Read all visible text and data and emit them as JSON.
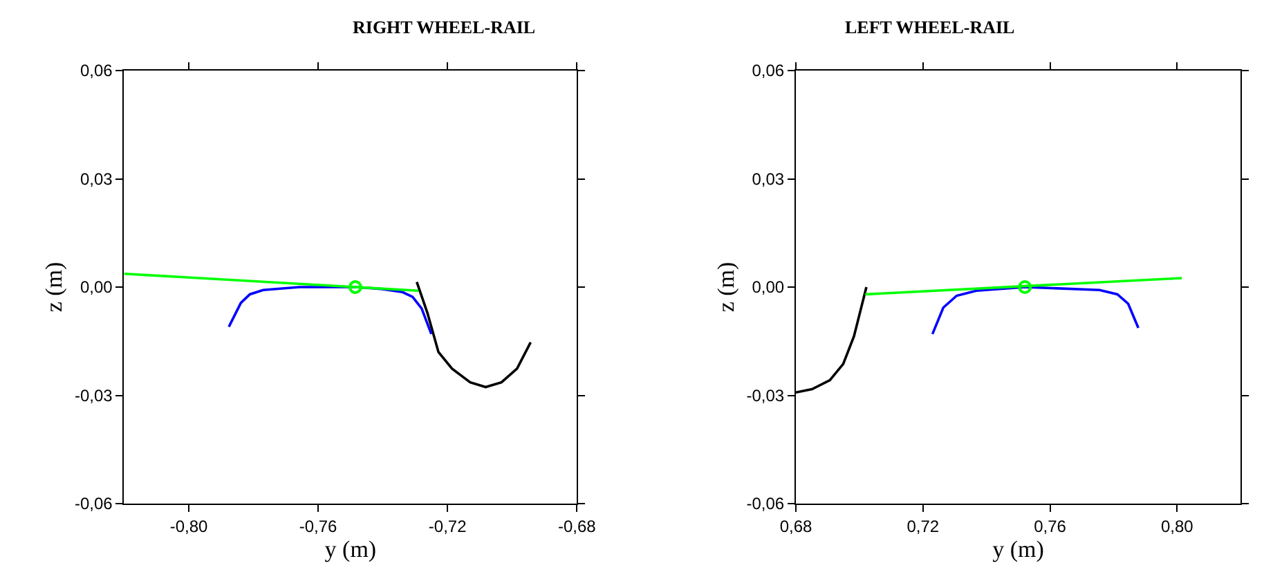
{
  "chart_data": [
    {
      "type": "line",
      "title": "RIGHT WHEEL-RAIL",
      "xlabel": "y (m)",
      "ylabel": "z (m)",
      "xlim": [
        -0.82,
        -0.68
      ],
      "xticks": [
        {
          "value": -0.8,
          "label": "-0,80"
        },
        {
          "value": -0.76,
          "label": "-0,76"
        },
        {
          "value": -0.72,
          "label": "-0,72"
        },
        {
          "value": -0.68,
          "label": "-0,68"
        }
      ],
      "ylim": [
        -0.06,
        0.06
      ],
      "yticks": [
        {
          "value": -0.06,
          "label": "-0,06"
        },
        {
          "value": -0.03,
          "label": "-0,03"
        },
        {
          "value": 0,
          "label": "0,00"
        },
        {
          "value": 0.03,
          "label": "0,03"
        },
        {
          "value": 0.06,
          "label": "0,06"
        }
      ],
      "grid": false,
      "legend": false,
      "marker": "none",
      "line_style": "solid",
      "series": [
        {
          "color": "#000000",
          "x": [
            -0.7295,
            -0.7262,
            -0.7228,
            -0.7186,
            -0.713,
            -0.7082,
            -0.7033,
            -0.6985,
            -0.6943
          ],
          "values": [
            0.0014,
            -0.0072,
            -0.018,
            -0.0226,
            -0.0264,
            -0.0277,
            -0.0264,
            -0.0226,
            -0.0153
          ]
        },
        {
          "color": "#0000ff",
          "x": [
            -0.7876,
            -0.7839,
            -0.7811,
            -0.777,
            -0.7658,
            -0.7485,
            -0.7405,
            -0.7339,
            -0.7308,
            -0.728,
            -0.725
          ],
          "values": [
            -0.011,
            -0.0044,
            -0.002,
            -0.0008,
            0,
            0,
            -0.0005,
            -0.0014,
            -0.0027,
            -0.0059,
            -0.013
          ]
        },
        {
          "color": "#00ff00",
          "x": [
            -0.82,
            -0.729
          ],
          "values": [
            0.0037,
            -0.001
          ]
        },
        {
          "type": "scatter",
          "color": "#00ff00",
          "marker": "circle",
          "x": [
            -0.7485
          ],
          "values": [
            0
          ]
        }
      ]
    },
    {
      "type": "line",
      "title": "LEFT WHEEL-RAIL",
      "xlabel": "y (m)",
      "ylabel": "z (m)",
      "xlim": [
        0.68,
        0.82
      ],
      "xticks": [
        {
          "value": 0.68,
          "label": "0,68"
        },
        {
          "value": 0.72,
          "label": "0,72"
        },
        {
          "value": 0.76,
          "label": "0,76"
        },
        {
          "value": 0.8,
          "label": "0,80"
        }
      ],
      "ylim": [
        -0.06,
        0.06
      ],
      "yticks": [
        {
          "value": -0.06,
          "label": "-0,06"
        },
        {
          "value": -0.03,
          "label": "-0,03"
        },
        {
          "value": 0,
          "label": "0,00"
        },
        {
          "value": 0.03,
          "label": "0,03"
        },
        {
          "value": 0.06,
          "label": "0,06"
        }
      ],
      "grid": false,
      "legend": false,
      "marker": "none",
      "line_style": "solid",
      "series": [
        {
          "color": "#000000",
          "x": [
            0.68,
            0.6851,
            0.6907,
            0.6949,
            0.6983,
            0.7022
          ],
          "values": [
            -0.0292,
            -0.0283,
            -0.0258,
            -0.0213,
            -0.0136,
            0
          ]
        },
        {
          "color": "#0000ff",
          "x": [
            0.723,
            0.7264,
            0.7306,
            0.7368,
            0.7521,
            0.7756,
            0.7812,
            0.7846,
            0.7878
          ],
          "values": [
            -0.013,
            -0.0057,
            -0.0024,
            -0.001,
            0,
            -0.0008,
            -0.002,
            -0.0046,
            -0.0113
          ]
        },
        {
          "color": "#00ff00",
          "x": [
            0.7018,
            0.8015
          ],
          "values": [
            -0.002,
            0.0025
          ]
        },
        {
          "type": "scatter",
          "color": "#00ff00",
          "marker": "circle",
          "x": [
            0.7521
          ],
          "values": [
            0
          ]
        }
      ]
    }
  ]
}
